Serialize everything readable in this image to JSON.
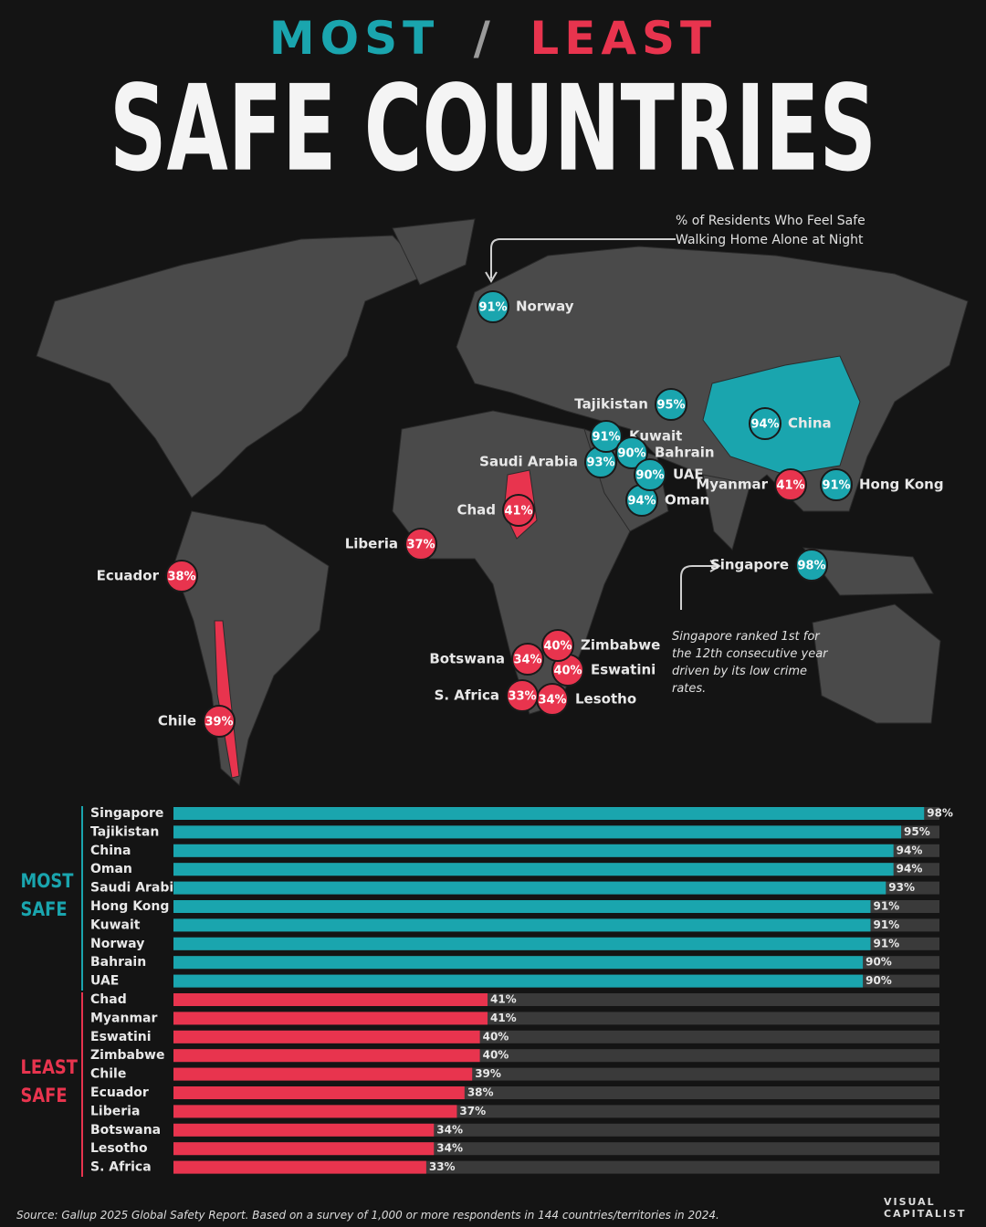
{
  "chart_data": {
    "type": "bar",
    "orientation": "horizontal",
    "title_most": "MOST",
    "title_slash": "/",
    "title_least": "LEAST",
    "title": "SAFE COUNTRIES",
    "subtitle": "% of Residents Who Feel Safe Walking Home Alone at Night",
    "annotation": "Singapore ranked 1st for the 12th consecutive year driven by its low crime rates.",
    "source": "Source: Gallup 2025 Global Safety Report. Based on a survey of 1,000 or more respondents in 144 countries/territories in 2024.",
    "brand": "VISUAL CAPITALIST",
    "xlim": [
      0,
      100
    ],
    "groups": [
      {
        "name": "MOST SAFE",
        "color": "#1aa5ae",
        "categories": [
          "Singapore",
          "Tajikistan",
          "China",
          "Oman",
          "Saudi Arabia",
          "Hong Kong",
          "Kuwait",
          "Norway",
          "Bahrain",
          "UAE"
        ],
        "values": [
          98,
          95,
          94,
          94,
          93,
          91,
          91,
          91,
          90,
          90
        ],
        "value_labels": [
          "98%",
          "95%",
          "94%",
          "94%",
          "93%",
          "91%",
          "91%",
          "91%",
          "90%",
          "90%"
        ]
      },
      {
        "name": "LEAST SAFE",
        "color": "#e8344e",
        "categories": [
          "Chad",
          "Myanmar",
          "Eswatini",
          "Zimbabwe",
          "Chile",
          "Ecuador",
          "Liberia",
          "Botswana",
          "Lesotho",
          "S. Africa"
        ],
        "values": [
          41,
          41,
          40,
          40,
          39,
          38,
          37,
          34,
          34,
          33
        ],
        "value_labels": [
          "41%",
          "41%",
          "40%",
          "40%",
          "39%",
          "38%",
          "37%",
          "34%",
          "34%",
          "33%"
        ]
      }
    ]
  }
}
